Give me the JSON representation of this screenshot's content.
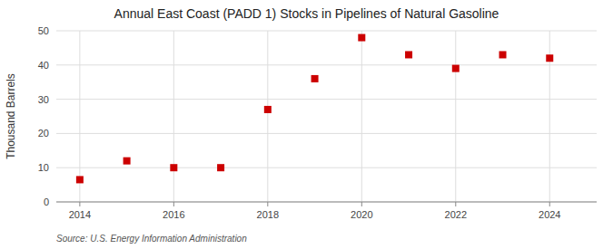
{
  "chart_data": {
    "type": "scatter",
    "title": "Annual East Coast (PADD 1) Stocks in Pipelines of Natural Gasoline",
    "ylabel": "Thousand Barrels",
    "source": "Source: U.S. Energy Information Administration",
    "x": [
      2014,
      2015,
      2016,
      2017,
      2018,
      2019,
      2020,
      2021,
      2022,
      2023,
      2024
    ],
    "values": [
      6.5,
      12.0,
      10.0,
      10.0,
      27.0,
      36.0,
      48.0,
      43.0,
      39.0,
      43.0,
      42.0
    ],
    "color": "#cc0000",
    "marker": "square",
    "xlim": [
      2013.5,
      2025.0
    ],
    "ylim": [
      0,
      50
    ],
    "xticks": [
      2014,
      2016,
      2018,
      2020,
      2022,
      2024
    ],
    "yticks": [
      0,
      10,
      20,
      30,
      40,
      50
    ],
    "grid": true
  }
}
